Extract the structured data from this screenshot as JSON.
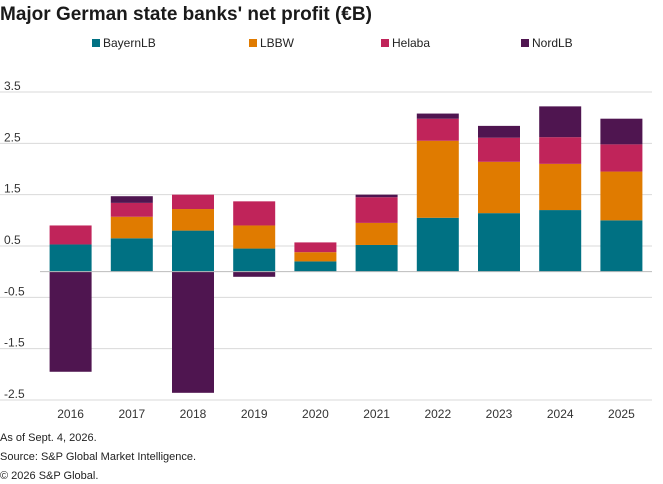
{
  "chart_data": {
    "type": "bar",
    "stacked": true,
    "title": "Major German state banks' net profit (€B)",
    "categories": [
      "2016",
      "2017",
      "2018",
      "2019",
      "2020",
      "2021",
      "2022",
      "2023",
      "2024",
      "2025"
    ],
    "series": [
      {
        "name": "BayernLB",
        "color": "#007183",
        "values": [
          0.53,
          0.65,
          0.8,
          0.45,
          0.2,
          0.52,
          1.05,
          1.14,
          1.2,
          1.0
        ]
      },
      {
        "name": "LBBW",
        "color": "#E07B00",
        "values": [
          0,
          0.42,
          0.42,
          0.45,
          0.18,
          0.43,
          1.5,
          1.0,
          0.9,
          0.95
        ]
      },
      {
        "name": "Helaba",
        "color": "#C0245A",
        "values": [
          0.37,
          0.27,
          0.28,
          0.47,
          0.19,
          0.5,
          0.43,
          0.47,
          0.52,
          0.53
        ]
      },
      {
        "name": "NordLB",
        "color": "#4F1550",
        "values": [
          -1.95,
          0.13,
          -2.36,
          -0.1,
          0,
          0.05,
          0.1,
          0.23,
          0.6,
          0.5
        ]
      }
    ],
    "yticks": [
      3.5,
      2.5,
      1.5,
      0.5,
      -0.5,
      -1.5,
      -2.5
    ],
    "ylim": [
      -2.5,
      3.5
    ],
    "grid": true,
    "legend_position": "top"
  },
  "footnotes": {
    "line1": "As of Sept. 4, 2026.",
    "line2": "Source: S&P Global Market Intelligence.",
    "line3": "© 2026 S&P Global."
  }
}
